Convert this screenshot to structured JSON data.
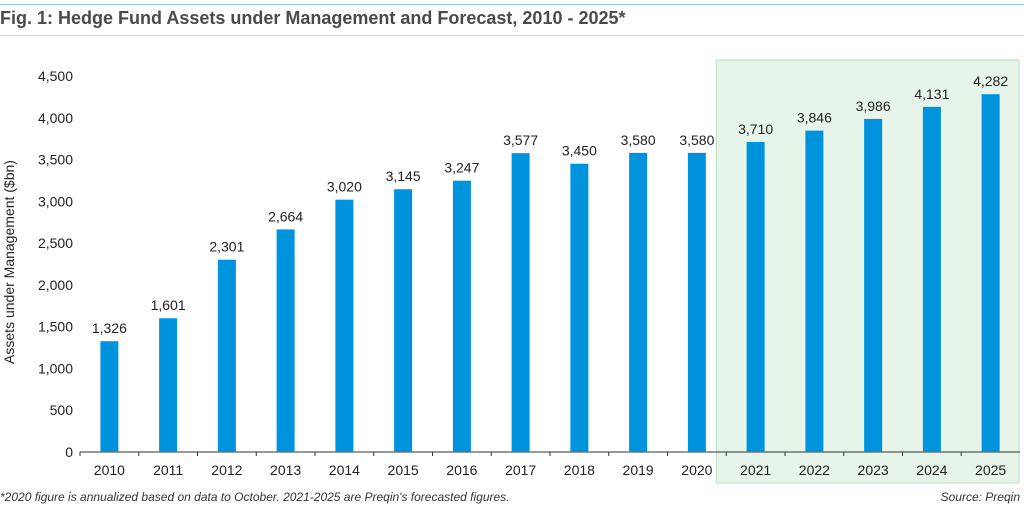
{
  "title": "Fig. 1: Hedge Fund Assets under Management and Forecast, 2010 - 2025*",
  "footnote": "*2020 figure is annualized based on data to October. 2021-2025 are Preqin's forecasted figures.",
  "source": "Source: Preqin",
  "colors": {
    "bar": "#0093dd",
    "forecast_bg": "#e6f4ea",
    "forecast_border": "#b9ddc2",
    "axis": "#333333"
  },
  "chart_data": {
    "type": "bar",
    "title": "Fig. 1: Hedge Fund Assets under Management and Forecast, 2010 - 2025*",
    "xlabel": "",
    "ylabel": "Assets under Management ($bn)",
    "ylim": [
      0,
      4500
    ],
    "yticks": [
      "0",
      "500",
      "1,000",
      "1,500",
      "2,000",
      "2,500",
      "3,000",
      "3,500",
      "4,000",
      "4,500"
    ],
    "categories": [
      "2010",
      "2011",
      "2012",
      "2013",
      "2014",
      "2015",
      "2016",
      "2017",
      "2018",
      "2019",
      "2020",
      "2021",
      "2022",
      "2023",
      "2024",
      "2025"
    ],
    "values": [
      1326,
      1601,
      2301,
      2664,
      3020,
      3145,
      3247,
      3577,
      3450,
      3580,
      3580,
      3710,
      3846,
      3986,
      4131,
      4282
    ],
    "value_labels": [
      "1,326",
      "1,601",
      "2,301",
      "2,664",
      "3,020",
      "3,145",
      "3,247",
      "3,577",
      "3,450",
      "3,580",
      "3,580",
      "3,710",
      "3,846",
      "3,986",
      "4,131",
      "4,282"
    ],
    "forecast_categories": [
      "2021",
      "2022",
      "2023",
      "2024",
      "2025"
    ],
    "grid": false,
    "legend": "none"
  }
}
